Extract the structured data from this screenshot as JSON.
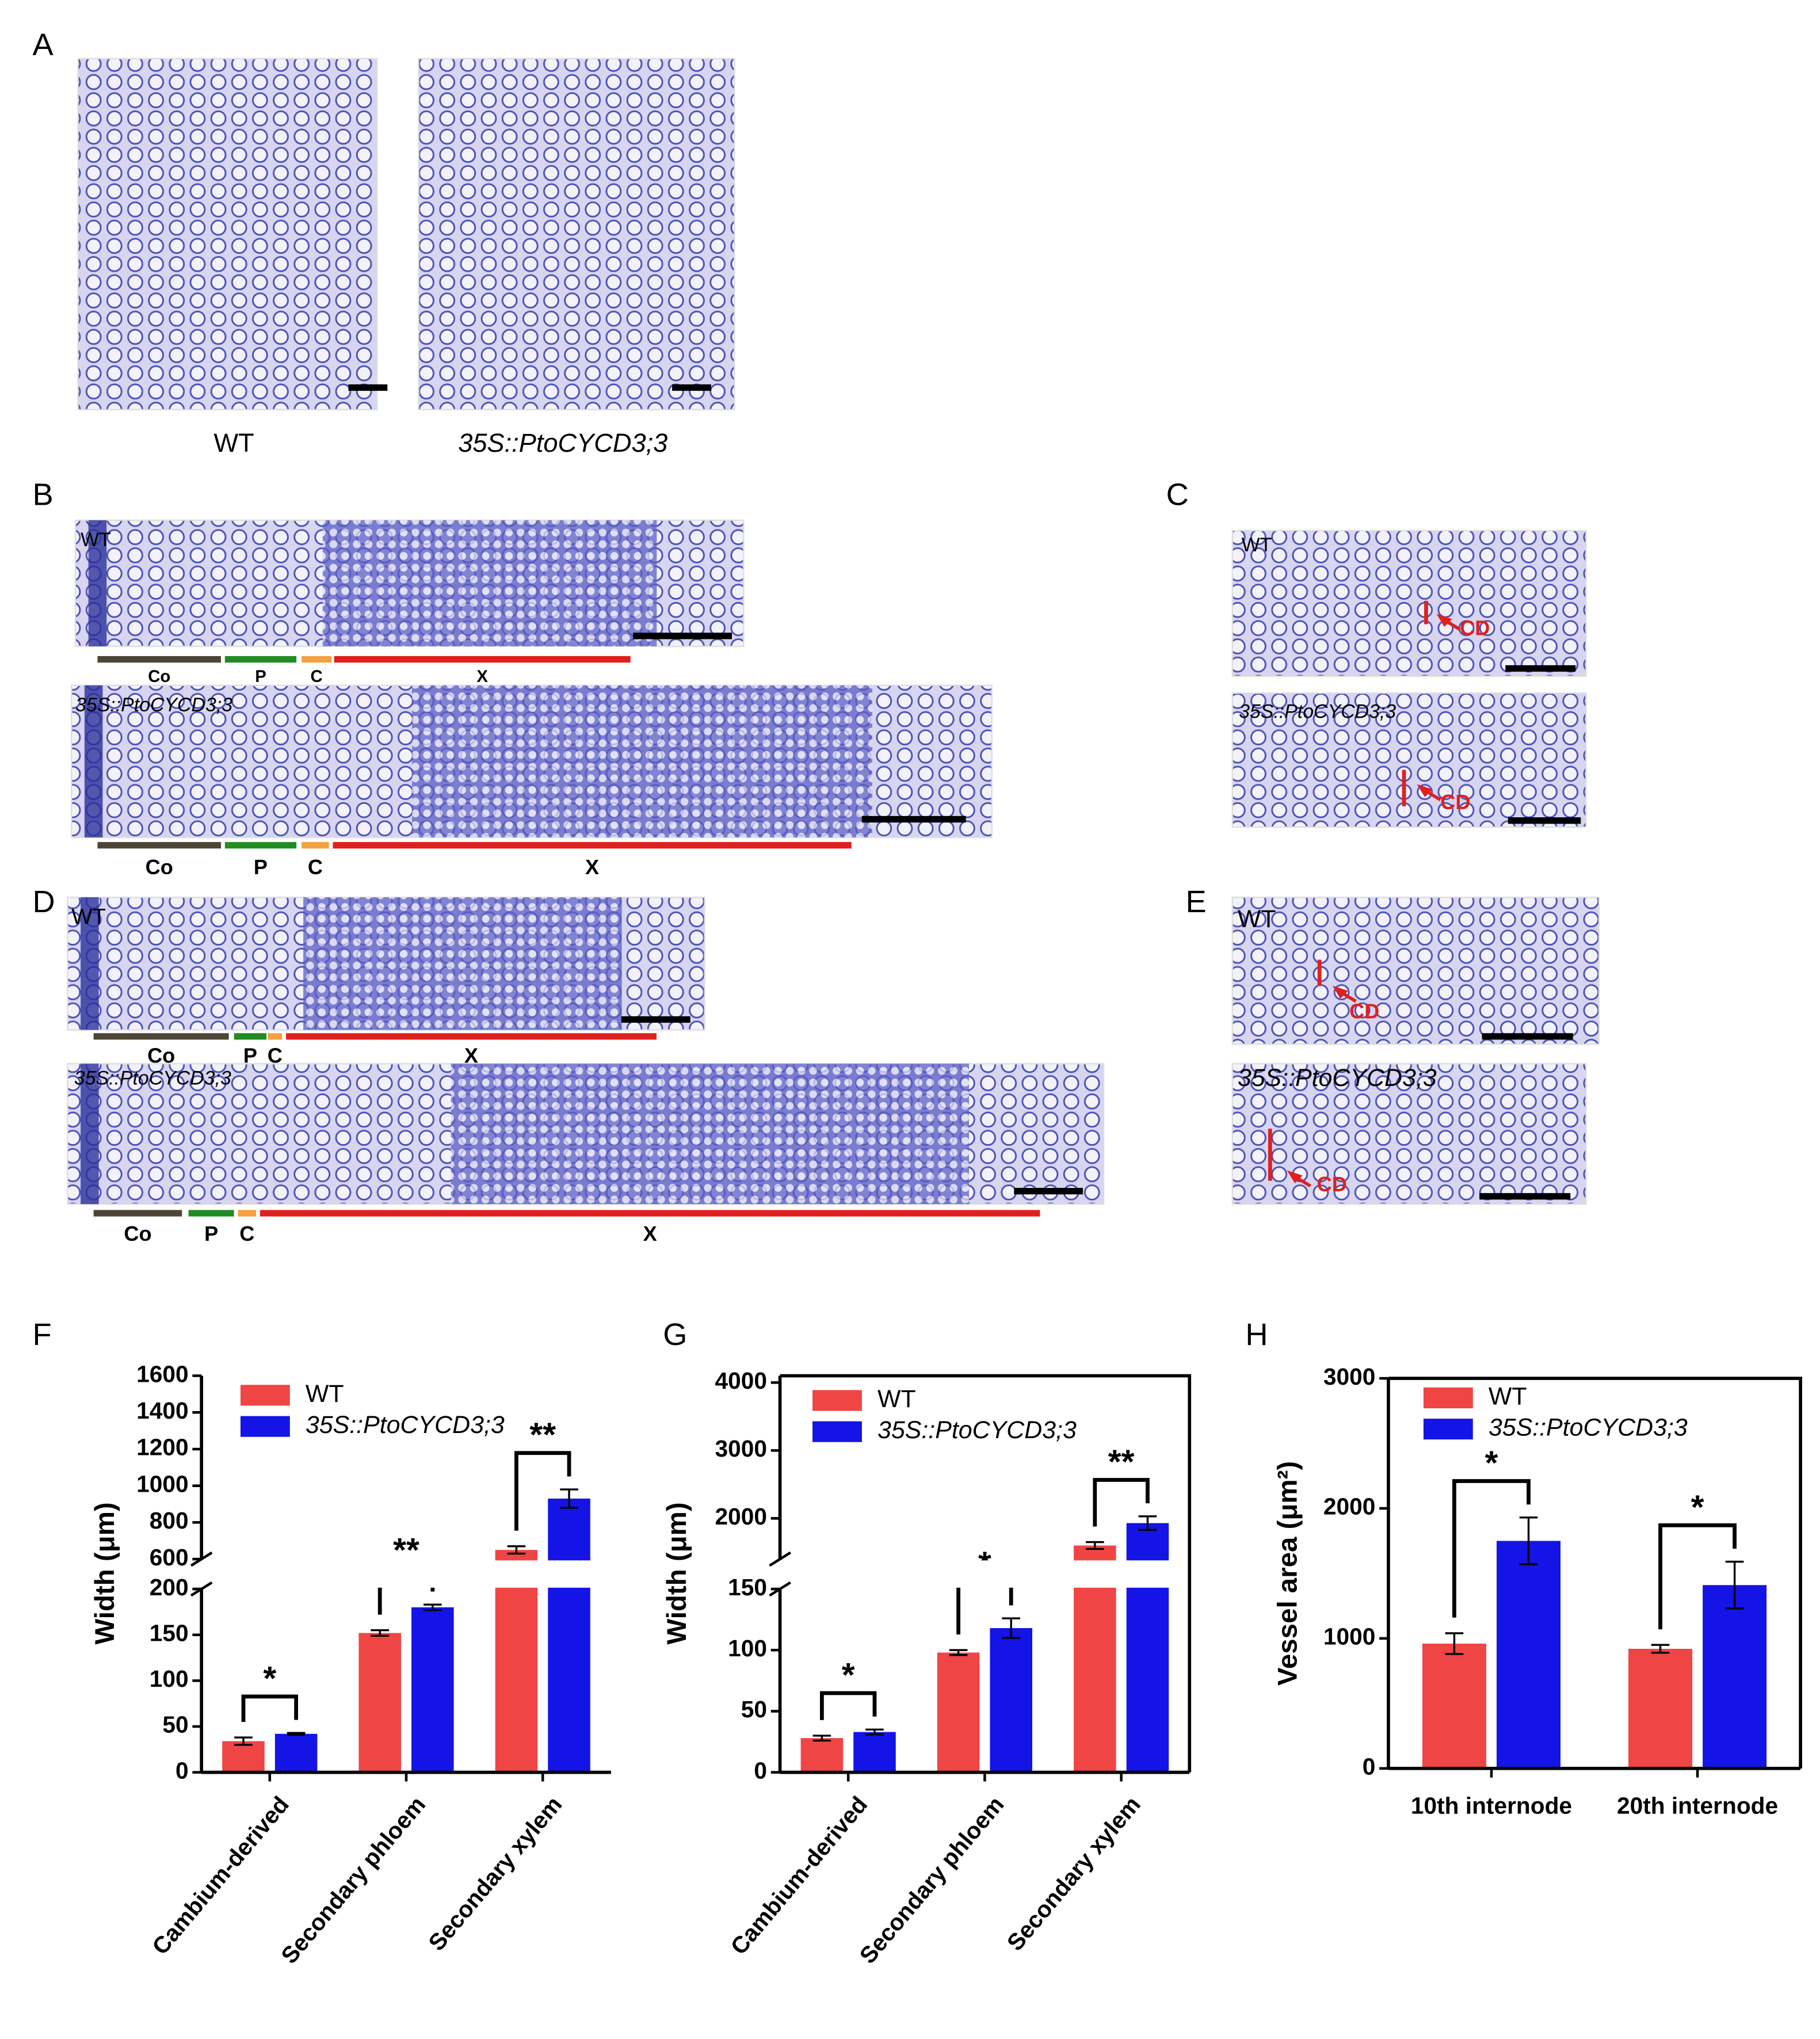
{
  "figure": {
    "panel_labels": [
      "A",
      "B",
      "C",
      "D",
      "E",
      "F",
      "G",
      "H"
    ],
    "A": {
      "captions": [
        "WT",
        "35S::PtoCYCD3;3"
      ]
    },
    "B": {
      "insets": [
        "WT",
        "35S::PtoCYCD3;3"
      ],
      "zones": [
        "Co",
        "P",
        "C",
        "X"
      ]
    },
    "C": {
      "insets": [
        "WT",
        "35S::PtoCYCD3;3"
      ],
      "arrow_label": "CD"
    },
    "D": {
      "insets": [
        "WT",
        "35S::PtoCYCD3;3"
      ],
      "zones": [
        "Co",
        "P",
        "C",
        "X"
      ]
    },
    "E": {
      "insets": [
        "WT",
        "35S::PtoCYCD3;3"
      ],
      "arrow_label": "CD"
    }
  },
  "chart_data": [
    {
      "type": "bar",
      "y_label": "Width (μm)",
      "categories": [
        "Cambium-derived",
        "Secondary phloem",
        "Secondary xylem"
      ],
      "series": [
        {
          "name": "WT",
          "color": "#f04545",
          "values": [
            34,
            152,
            650
          ],
          "errors": [
            4,
            3,
            20
          ]
        },
        {
          "name": "35S::PtoCYCD3;3",
          "color": "#1414e6",
          "values": [
            42,
            180,
            930
          ],
          "errors": [
            1,
            3,
            50
          ]
        }
      ],
      "significance": [
        "*",
        "**",
        "**"
      ],
      "ylim": [
        0,
        1600
      ],
      "ybreak": [
        200,
        600
      ],
      "yticks": [
        0,
        50,
        100,
        150,
        200,
        600,
        800,
        1000,
        1200,
        1400,
        1600
      ],
      "frame": false
    },
    {
      "type": "bar",
      "y_label": "Width (μm)",
      "categories": [
        "Cambium-derived",
        "Secondary phloem",
        "Secondary xylem"
      ],
      "series": [
        {
          "name": "WT",
          "color": "#f04545",
          "values": [
            28,
            98,
            1600
          ],
          "errors": [
            2,
            2,
            50
          ]
        },
        {
          "name": "35S::PtoCYCD3;3",
          "color": "#1414e6",
          "values": [
            33,
            118,
            1930
          ],
          "errors": [
            2,
            8,
            100
          ]
        }
      ],
      "significance": [
        "*",
        "*",
        "**"
      ],
      "ylim": [
        0,
        4100
      ],
      "ybreak": [
        150,
        1400
      ],
      "yticks": [
        0,
        50,
        100,
        150,
        2000,
        3000,
        4000
      ],
      "frame": true
    },
    {
      "type": "bar",
      "y_label": "Vessel area (μm²)",
      "categories": [
        "10th internode",
        "20th internode"
      ],
      "series": [
        {
          "name": "WT",
          "color": "#f04545",
          "values": [
            960,
            920
          ],
          "errors": [
            80,
            30
          ]
        },
        {
          "name": "35S::PtoCYCD3;3",
          "color": "#1414e6",
          "values": [
            1750,
            1410
          ],
          "errors": [
            180,
            180
          ]
        }
      ],
      "significance": [
        "*",
        "*"
      ],
      "ylim": [
        0,
        3000
      ],
      "yticks": [
        0,
        1000,
        2000,
        3000
      ],
      "frame": true
    }
  ]
}
